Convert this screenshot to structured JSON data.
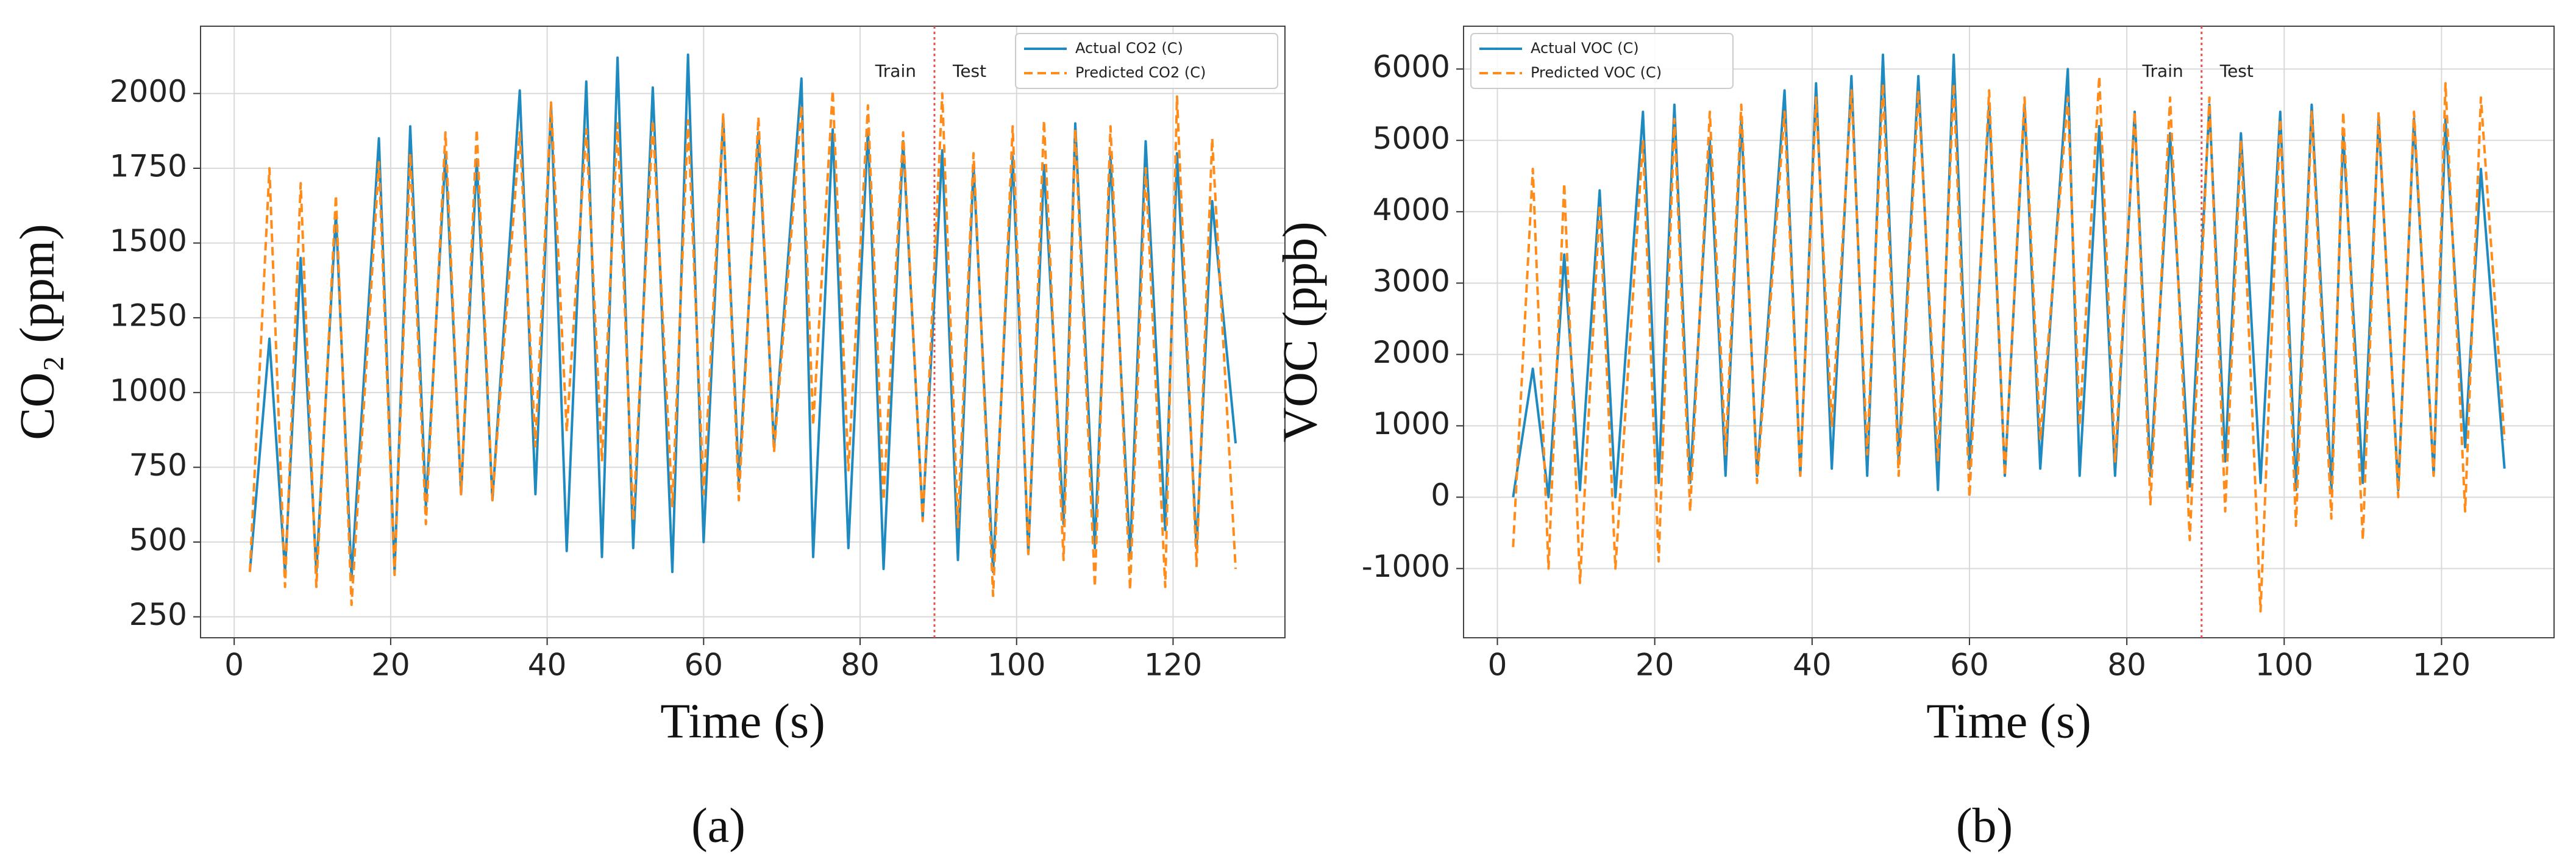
{
  "chart_data": [
    {
      "type": "line",
      "caption": "(a)",
      "xlabel": "Time (s)",
      "ylabel": "CO₂ (ppm)",
      "xlim": [
        -4.3,
        134.3
      ],
      "ylim": [
        180,
        2225
      ],
      "xticks": [
        0,
        20,
        40,
        60,
        80,
        100,
        120
      ],
      "yticks": [
        250,
        500,
        750,
        1000,
        1250,
        1500,
        1750,
        2000
      ],
      "grid": true,
      "legend": "upper right",
      "split": {
        "x": 89.5,
        "color": "#e8534a",
        "left_label": "Train",
        "right_label": "Test"
      },
      "x": [
        2,
        4.5,
        6.5,
        8.5,
        10.5,
        13,
        15,
        18.5,
        20.5,
        22.5,
        24.5,
        27,
        29,
        31,
        33,
        36.5,
        38.5,
        40.5,
        42.5,
        45,
        47,
        49,
        51,
        53.5,
        56,
        58,
        60,
        62.5,
        64.5,
        67,
        69,
        72.5,
        74,
        76.5,
        78.5,
        81,
        83,
        85.5,
        88,
        90.5,
        92.5,
        94.5,
        97,
        99.5,
        101.5,
        103.5,
        106,
        107.5,
        110,
        112,
        114.5,
        116.5,
        119,
        120.5,
        123,
        125,
        128
      ],
      "series": [
        {
          "name": "Actual CO2 (C)",
          "color": "#1f8ac0",
          "dash": false,
          "values": [
            400,
            1180,
            400,
            1450,
            400,
            1600,
            380,
            1850,
            400,
            1890,
            620,
            1800,
            660,
            1780,
            640,
            2010,
            660,
            1960,
            470,
            2040,
            450,
            2120,
            480,
            2020,
            400,
            2130,
            500,
            1920,
            700,
            1870,
            820,
            2050,
            450,
            1880,
            480,
            1880,
            410,
            1840,
            580,
            1810,
            440,
            1760,
            400,
            1790,
            460,
            1760,
            560,
            1900,
            480,
            1790,
            450,
            1840,
            540,
            1800,
            480,
            1640,
            830
          ]
        },
        {
          "name": "Predicted CO2 (C)",
          "color": "#ff8c1a",
          "dash": true,
          "values": [
            400,
            1750,
            350,
            1700,
            350,
            1660,
            290,
            1770,
            390,
            1800,
            560,
            1870,
            660,
            1880,
            640,
            1870,
            820,
            1970,
            870,
            1880,
            770,
            1900,
            570,
            1910,
            620,
            1910,
            660,
            1930,
            640,
            1920,
            800,
            1960,
            890,
            2010,
            740,
            1960,
            640,
            1870,
            570,
            2000,
            550,
            1800,
            320,
            1890,
            460,
            1910,
            440,
            1880,
            350,
            1890,
            340,
            1750,
            350,
            1990,
            420,
            1850,
            410
          ]
        }
      ]
    },
    {
      "type": "line",
      "caption": "(b)",
      "xlabel": "Time (s)",
      "ylabel": "VOC (ppb)",
      "xlim": [
        -4.3,
        134.3
      ],
      "ylim": [
        -1970,
        6600
      ],
      "xticks": [
        0,
        20,
        40,
        60,
        80,
        100,
        120
      ],
      "yticks": [
        -1000,
        0,
        1000,
        2000,
        3000,
        4000,
        5000,
        6000
      ],
      "grid": true,
      "legend": "upper left",
      "split": {
        "x": 89.5,
        "color": "#e8534a",
        "left_label": "Train",
        "right_label": "Test"
      },
      "x": [
        2,
        4.5,
        6.5,
        8.5,
        10.5,
        13,
        15,
        18.5,
        20.5,
        22.5,
        24.5,
        27,
        29,
        31,
        33,
        36.5,
        38.5,
        40.5,
        42.5,
        45,
        47,
        49,
        51,
        53.5,
        56,
        58,
        60,
        62.5,
        64.5,
        67,
        69,
        72.5,
        74,
        76.5,
        78.5,
        81,
        83,
        85.5,
        88,
        90.5,
        92.5,
        94.5,
        97,
        99.5,
        101.5,
        103.5,
        106,
        107.5,
        110,
        112,
        114.5,
        116.5,
        119,
        120.5,
        123,
        125,
        128
      ],
      "series": [
        {
          "name": "Actual VOC (C)",
          "color": "#1f8ac0",
          "dash": false,
          "values": [
            0,
            1800,
            0,
            3400,
            100,
            4300,
            0,
            5400,
            200,
            5500,
            200,
            5000,
            300,
            5300,
            300,
            5700,
            300,
            5800,
            400,
            5900,
            300,
            6200,
            500,
            5900,
            100,
            6200,
            400,
            5500,
            300,
            5500,
            400,
            6000,
            300,
            5200,
            300,
            5400,
            300,
            5100,
            150,
            5500,
            500,
            5100,
            200,
            5400,
            100,
            5500,
            100,
            5100,
            200,
            5300,
            100,
            5300,
            300,
            5300,
            700,
            4600,
            400
          ]
        },
        {
          "name": "Predicted VOC (C)",
          "color": "#ff8c1a",
          "dash": true,
          "values": [
            -700,
            4600,
            -1000,
            4400,
            -1200,
            4100,
            -1000,
            5000,
            -900,
            5300,
            -200,
            5400,
            600,
            5500,
            200,
            5400,
            300,
            5600,
            1000,
            5700,
            600,
            5800,
            300,
            5700,
            500,
            5800,
            0,
            5700,
            300,
            5600,
            800,
            5600,
            1000,
            5900,
            500,
            5400,
            -100,
            5600,
            -600,
            5600,
            -200,
            5000,
            -1600,
            5300,
            -400,
            5400,
            -300,
            5400,
            -600,
            5400,
            0,
            5400,
            300,
            5800,
            -200,
            5600,
            800
          ]
        }
      ]
    }
  ]
}
